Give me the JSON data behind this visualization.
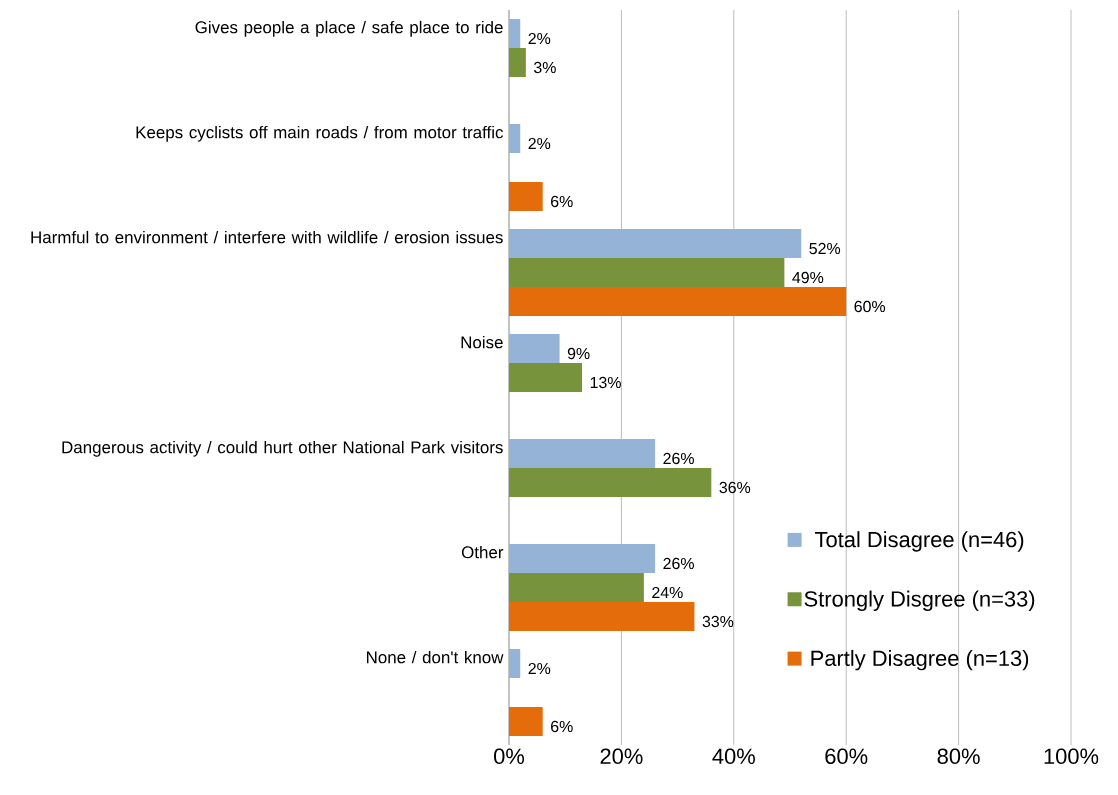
{
  "chart_data": {
    "type": "bar",
    "orientation": "horizontal",
    "categories": [
      "Gives people a  place / safe place to ride",
      "Keeps cyclists off main roads / from motor traffic",
      "Harmful to environment / interfere with wildlife / erosion issues",
      "Noise",
      "Dangerous activity / could hurt other National Park visitors",
      "Other",
      "None / don't know"
    ],
    "series": [
      {
        "name": "Total Disagree (n=46)",
        "color": "#95b3d7",
        "values": [
          2,
          2,
          52,
          9,
          26,
          26,
          2
        ],
        "value_labels": [
          "2%",
          "2%",
          "52%",
          "9%",
          "26%",
          "26%",
          "2%"
        ]
      },
      {
        "name": "Strongly Disgree (n=33)",
        "color": "#77933c",
        "values": [
          3,
          null,
          49,
          13,
          36,
          24,
          null
        ],
        "value_labels": [
          "3%",
          null,
          "49%",
          "13%",
          "36%",
          "24%",
          null
        ]
      },
      {
        "name": "Partly Disagree (n=13)",
        "color": "#e46c0a",
        "values": [
          null,
          6,
          60,
          null,
          null,
          33,
          6
        ],
        "value_labels": [
          null,
          "6%",
          "60%",
          null,
          null,
          "33%",
          "6%"
        ]
      }
    ],
    "xlim": [
      0,
      100
    ],
    "xticks": [
      {
        "value": 0,
        "label": "0%"
      },
      {
        "value": 20,
        "label": "20%"
      },
      {
        "value": 40,
        "label": "40%"
      },
      {
        "value": 60,
        "label": "60%"
      },
      {
        "value": 80,
        "label": "80%"
      },
      {
        "value": 100,
        "label": "100%"
      }
    ],
    "grid": "x",
    "legend": "right"
  }
}
